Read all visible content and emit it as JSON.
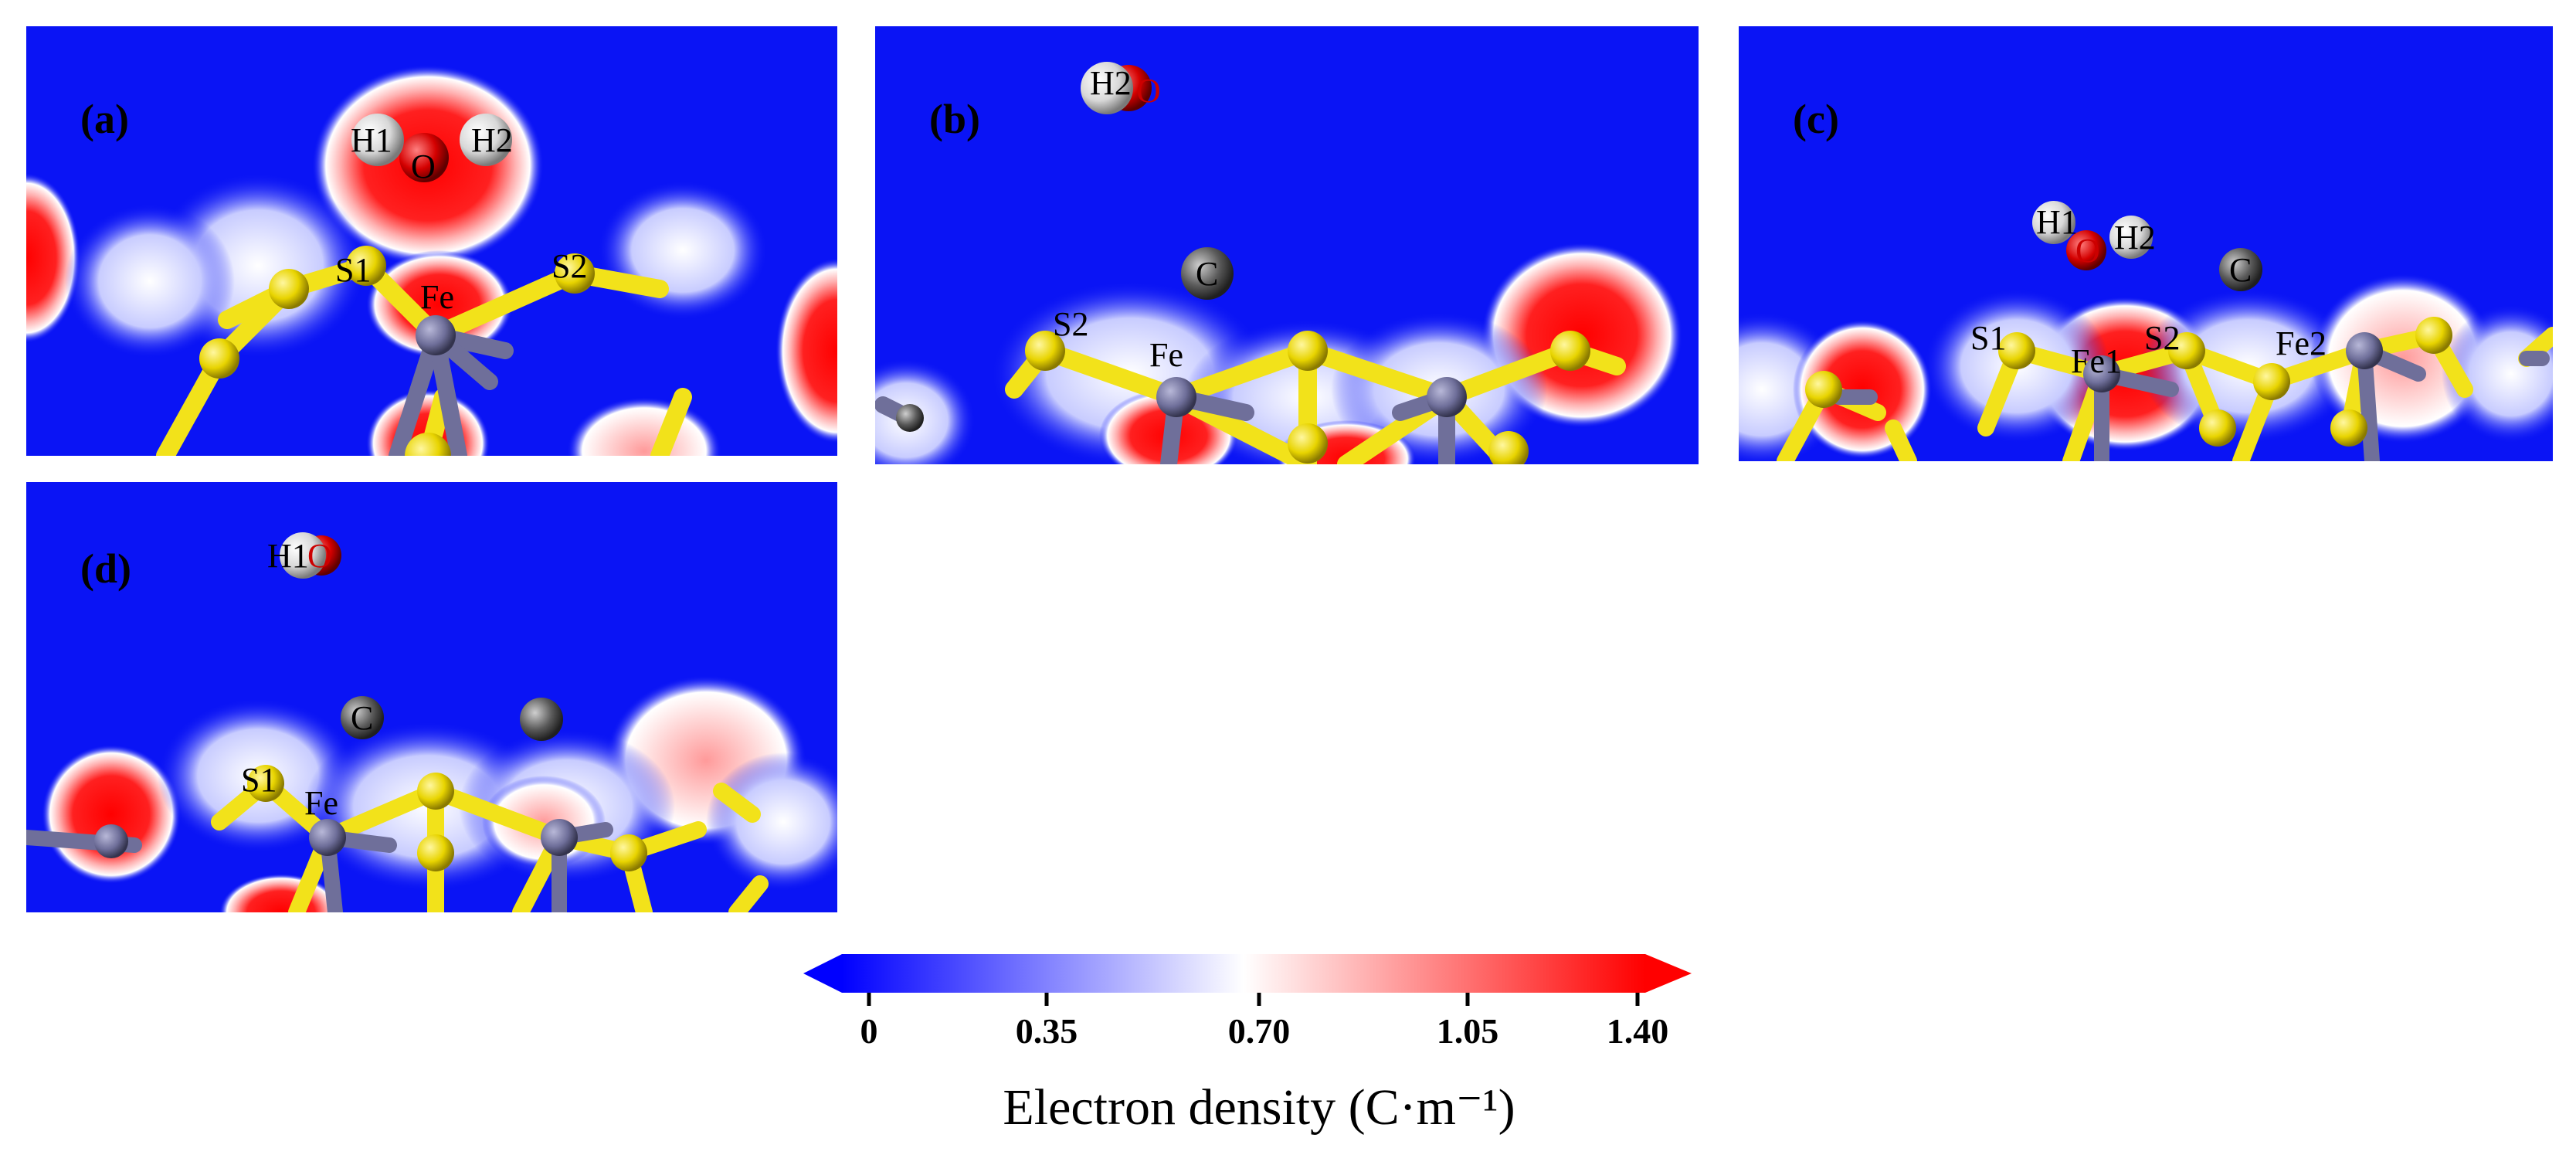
{
  "figure": {
    "panels": [
      {
        "label": "(a)",
        "atoms": {
          "h1": "H1",
          "o": "O",
          "h2": "H2",
          "s1": "S1",
          "s2": "S2",
          "fe": "Fe"
        }
      },
      {
        "label": "(b)",
        "atoms": {
          "h2": "H2",
          "o": "O",
          "c": "C",
          "s2": "S2",
          "fe": "Fe"
        }
      },
      {
        "label": "(c)",
        "atoms": {
          "h1": "H1",
          "o": "O",
          "h2": "H2",
          "c": "C",
          "s1": "S1",
          "fe1": "Fe1",
          "s2": "S2",
          "fe2": "Fe2"
        }
      },
      {
        "label": "(d)",
        "atoms": {
          "h1": "H1",
          "o": "O",
          "c": "C",
          "s1": "S1",
          "fe": "Fe"
        }
      }
    ],
    "colorbar": {
      "ticks": [
        "0",
        "0.35",
        "0.70",
        "1.05",
        "1.40"
      ],
      "title": "Electron density (C·m⁻¹)",
      "colors": {
        "low": "#0000ff",
        "mid": "#ffffff",
        "high": "#ff0000"
      }
    },
    "colors": {
      "background_density": "#0a14f5",
      "sulfur": "#f2e21a",
      "iron": "#6f6f9a",
      "carbon": "#5a5a5a",
      "oxygen": "#d40000",
      "hydrogen": "#e8e8e8"
    }
  }
}
